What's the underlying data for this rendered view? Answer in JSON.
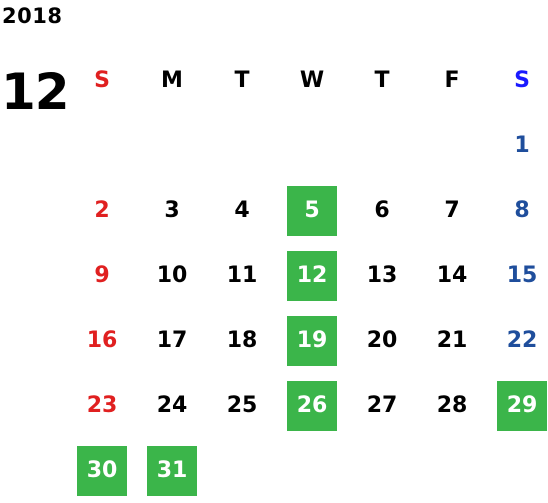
{
  "year": "2018",
  "month": "12",
  "colors": {
    "sunday": "#e02020",
    "saturday": "#1f4e9c",
    "saturday_header": "#1a1aff",
    "highlight": "#3bb54a"
  },
  "weekdays": [
    "S",
    "M",
    "T",
    "W",
    "T",
    "F",
    "S"
  ],
  "weeks": [
    [
      "",
      "",
      "",
      "",
      "",
      "",
      "1"
    ],
    [
      "2",
      "3",
      "4",
      "5",
      "6",
      "7",
      "8"
    ],
    [
      "9",
      "10",
      "11",
      "12",
      "13",
      "14",
      "15"
    ],
    [
      "16",
      "17",
      "18",
      "19",
      "20",
      "21",
      "22"
    ],
    [
      "23",
      "24",
      "25",
      "26",
      "27",
      "28",
      "29"
    ],
    [
      "30",
      "31",
      "",
      "",
      "",
      "",
      ""
    ]
  ],
  "highlighted_days": [
    "5",
    "12",
    "19",
    "26",
    "29",
    "30",
    "31"
  ]
}
